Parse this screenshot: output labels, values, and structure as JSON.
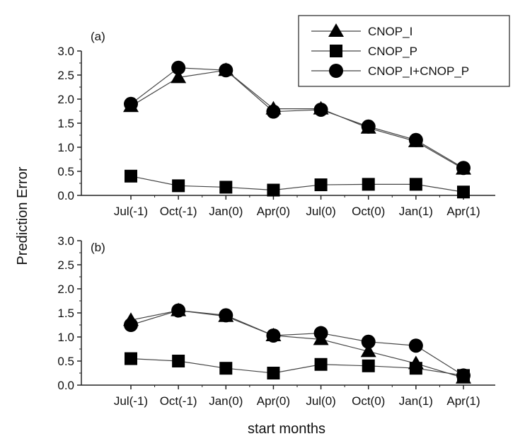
{
  "chart_data": [
    {
      "type": "line",
      "panel_label": "(a)",
      "categories": [
        "Jul(-1)",
        "Oct(-1)",
        "Jan(0)",
        "Apr(0)",
        "Jul(0)",
        "Oct(0)",
        "Jan(1)",
        "Apr(1)"
      ],
      "series": [
        {
          "name": "CNOP_I",
          "marker": "triangle",
          "values": [
            1.85,
            2.45,
            2.6,
            1.8,
            1.8,
            1.4,
            1.12,
            0.55
          ]
        },
        {
          "name": "CNOP_P",
          "marker": "square",
          "values": [
            0.4,
            0.2,
            0.17,
            0.11,
            0.22,
            0.23,
            0.23,
            0.07
          ]
        },
        {
          "name": "CNOP_I+CNOP_P",
          "marker": "circle",
          "values": [
            1.9,
            2.65,
            2.6,
            1.74,
            1.78,
            1.43,
            1.15,
            0.57
          ]
        }
      ],
      "ylim": [
        0,
        3.0
      ],
      "yticks": [
        "0.0",
        "0.5",
        "1.0",
        "1.5",
        "2.0",
        "2.5",
        "3.0"
      ],
      "legend": {
        "position": "top-right",
        "entries": [
          "CNOP_I",
          "CNOP_P",
          "CNOP_I+CNOP_P"
        ]
      }
    },
    {
      "type": "line",
      "panel_label": "(b)",
      "categories": [
        "Jul(-1)",
        "Oct(-1)",
        "Jan(0)",
        "Apr(0)",
        "Jul(0)",
        "Oct(0)",
        "Jan(1)",
        "Apr(1)"
      ],
      "series": [
        {
          "name": "CNOP_I",
          "marker": "triangle",
          "values": [
            1.35,
            1.55,
            1.43,
            1.03,
            0.95,
            0.7,
            0.45,
            0.15
          ]
        },
        {
          "name": "CNOP_P",
          "marker": "square",
          "values": [
            0.55,
            0.5,
            0.35,
            0.25,
            0.43,
            0.4,
            0.35,
            0.2
          ]
        },
        {
          "name": "CNOP_I+CNOP_P",
          "marker": "circle",
          "values": [
            1.25,
            1.55,
            1.45,
            1.03,
            1.08,
            0.9,
            0.82,
            0.2
          ]
        }
      ],
      "ylim": [
        0,
        3.0
      ],
      "yticks": [
        "0.0",
        "0.5",
        "1.0",
        "1.5",
        "2.0",
        "2.5",
        "3.0"
      ]
    }
  ],
  "ylabel": "Prediction Error",
  "xlabel": "start months",
  "colors": {
    "line": "#444444",
    "marker": "#000000",
    "axis": "#222222"
  }
}
